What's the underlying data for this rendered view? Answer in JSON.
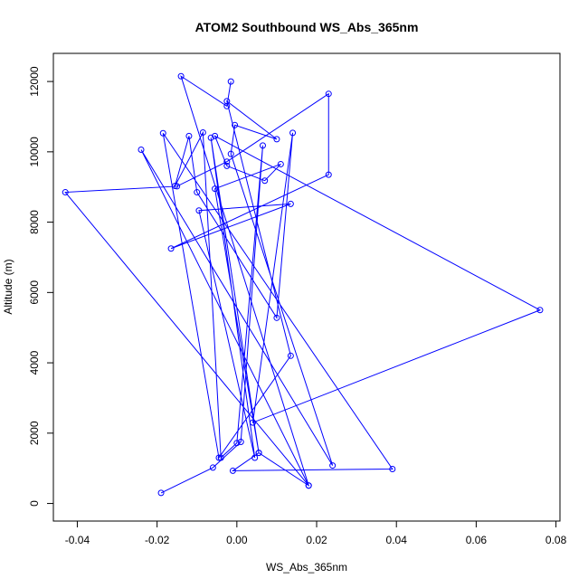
{
  "chart_data": {
    "type": "line",
    "title": "ATOM2 Southbound WS_Abs_365nm",
    "xlabel": "WS_Abs_365nm",
    "ylabel": "Altitude (m)",
    "xlim": [
      -0.046,
      0.081
    ],
    "ylim": [
      -500,
      12800
    ],
    "xticks": [
      -0.04,
      -0.02,
      0.0,
      0.02,
      0.04,
      0.06,
      0.08
    ],
    "xtick_labels": [
      "-0.04",
      "-0.02",
      "0.00",
      "0.02",
      "0.04",
      "0.06",
      "0.08"
    ],
    "yticks": [
      0,
      2000,
      4000,
      6000,
      8000,
      10000,
      12000
    ],
    "ytick_labels": [
      "0",
      "2000",
      "4000",
      "6000",
      "8000",
      "10000",
      "12000"
    ],
    "series_color": "#0000ff",
    "marker": "open-circle",
    "series": [
      {
        "x": [
          -0.019,
          -0.006,
          0.001,
          0.0065,
          0.0,
          -0.004,
          -0.0085,
          -0.0155,
          -0.012,
          -0.01,
          0.01,
          0.014,
          0.004,
          0.076,
          -0.0055,
          -0.0025,
          0.007,
          0.011,
          -0.0055,
          0.0055,
          -0.0065,
          0.0045,
          -0.0095,
          0.0135,
          -0.0165,
          0.023,
          0.023,
          -0.0025,
          -0.015,
          -0.043,
          0.018,
          -0.024,
          0.024,
          -0.0015,
          -0.0005,
          0.01,
          -0.0025,
          0.0135,
          -0.0045,
          -0.0185,
          0.039,
          -0.001,
          0.0055,
          0.018,
          -0.014,
          -0.0025,
          -0.0015
        ],
        "y": [
          300,
          1020,
          1750,
          10180,
          1720,
          1300,
          10550,
          9030,
          10450,
          8850,
          5280,
          10540,
          2300,
          5500,
          10450,
          9600,
          9180,
          9650,
          8950,
          1440,
          10400,
          1300,
          8330,
          8520,
          7250,
          9350,
          11650,
          9720,
          9020,
          8850,
          510,
          10060,
          1080,
          9940,
          10760,
          10360,
          11440,
          4200,
          1300,
          10530,
          980,
          930,
          1440,
          510,
          12150,
          11300,
          12000
        ]
      }
    ]
  }
}
